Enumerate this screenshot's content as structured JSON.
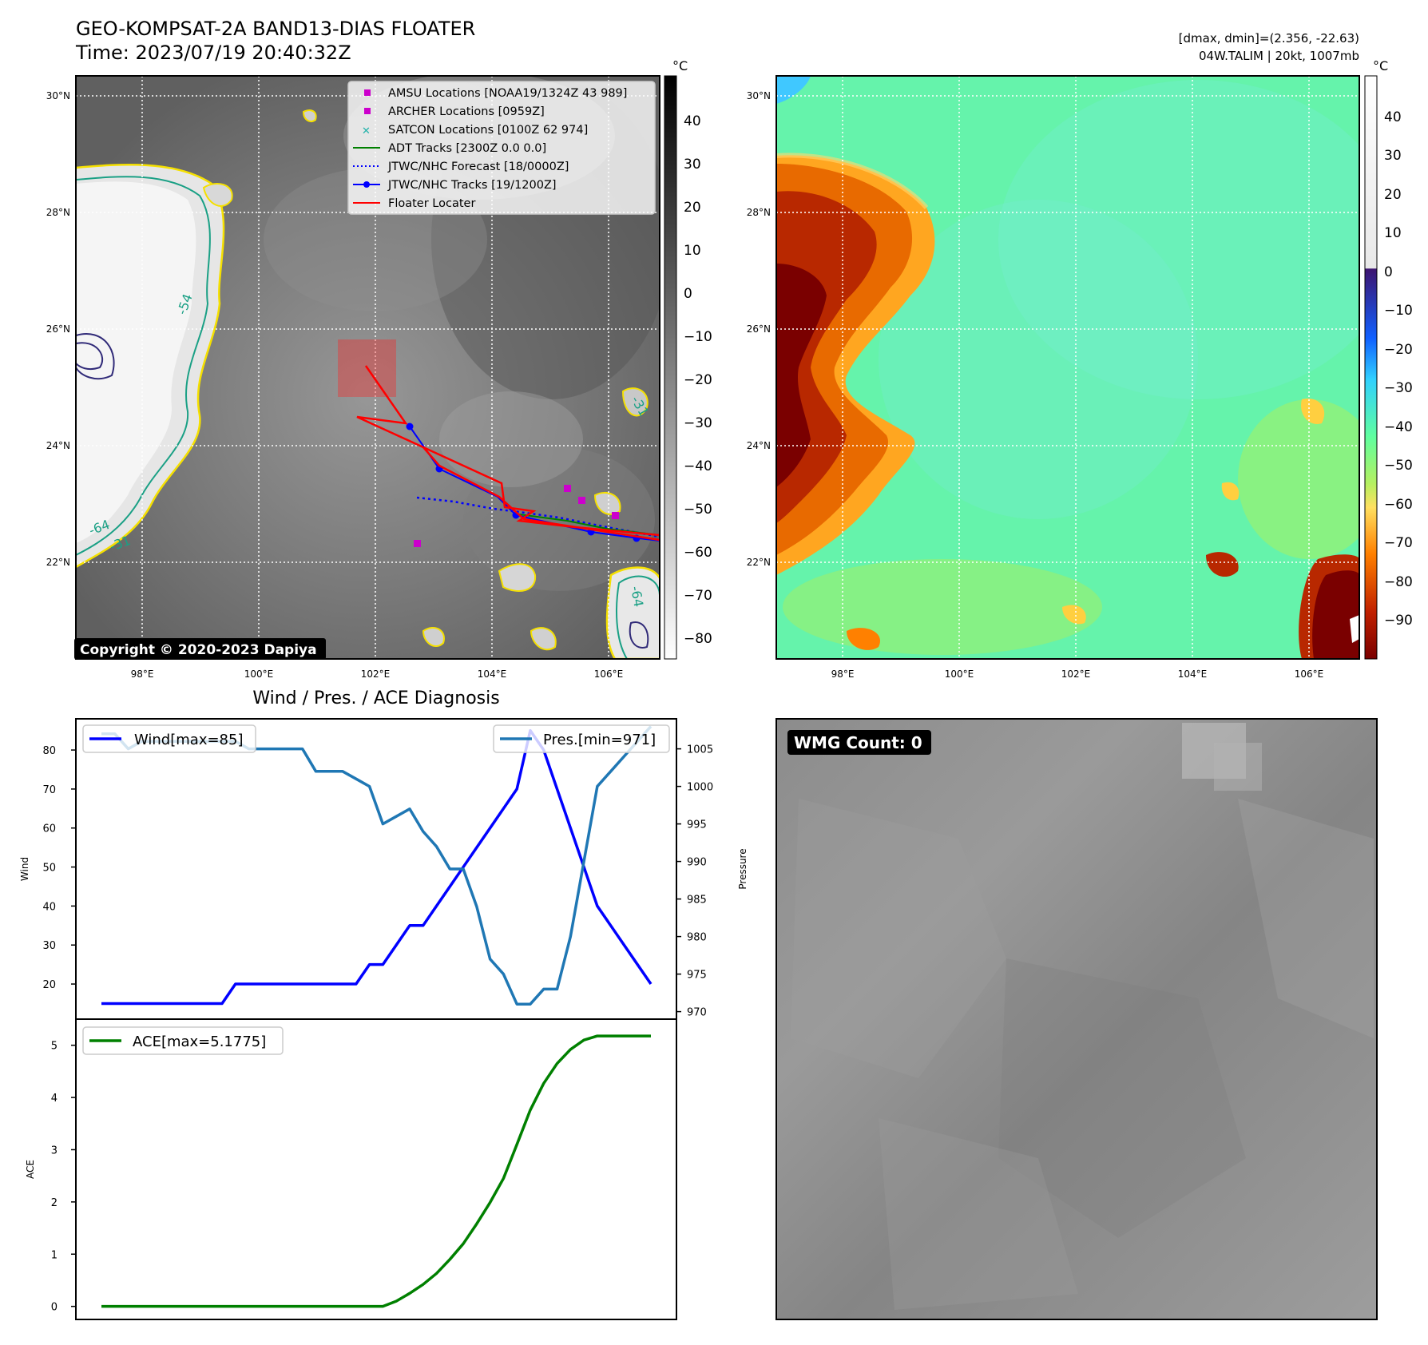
{
  "header": {
    "title_line1": "GEO-KOMPSAT-2A BAND13-DIAS FLOATER",
    "title_line2": "Time: 2023/07/19 20:40:32Z",
    "right_line1": "[dmax, dmin]=(2.356, -22.63)",
    "right_line2": "04W.TALIM | 20kt, 1007mb"
  },
  "map": {
    "lat_labels": [
      "30°N",
      "28°N",
      "26°N",
      "24°N",
      "22°N"
    ],
    "lon_labels": [
      "98°E",
      "100°E",
      "102°E",
      "104°E",
      "106°E"
    ],
    "copyright": "Copyright © 2020-2023 Dapiya",
    "contour_labels": [
      "-64",
      "-31",
      "-31",
      "-64",
      "-31",
      "-64",
      "-54",
      "-64"
    ]
  },
  "ir_colorbar": {
    "unit": "°C",
    "ticks": [
      "40",
      "30",
      "20",
      "10",
      "0",
      "−10",
      "−20",
      "−30",
      "−40",
      "−50",
      "−60",
      "−70",
      "−80"
    ]
  },
  "color_colorbar": {
    "unit": "°C",
    "ticks": [
      "40",
      "30",
      "20",
      "10",
      "0",
      "−10",
      "−20",
      "−30",
      "−40",
      "−50",
      "−60",
      "−70",
      "−80",
      "−90"
    ]
  },
  "legend": {
    "items": [
      {
        "label": "AMSU Locations [NOAA19/1324Z 43 989]",
        "color": "#cc00cc",
        "marker": "square"
      },
      {
        "label": "ARCHER Locations [0959Z]",
        "color": "#cc00cc",
        "marker": "square"
      },
      {
        "label": "SATCON Locations [0100Z 62 974]",
        "color": "#20b2aa",
        "marker": "x"
      },
      {
        "label": "ADT Tracks [2300Z 0.0 0.0]",
        "color": "#008000",
        "marker": "line"
      },
      {
        "label": "JTWC/NHC Forecast [18/0000Z]",
        "color": "#0000ff",
        "marker": "dotted"
      },
      {
        "label": "JTWC/NHC Tracks [19/1200Z]",
        "color": "#0000ff",
        "marker": "dotline"
      },
      {
        "label": "Floater Locater",
        "color": "#ff0000",
        "marker": "line"
      }
    ]
  },
  "wmg": {
    "label": "WMG Count: 0"
  },
  "chart_data": [
    {
      "type": "line",
      "title": "Wind / Pres. / ACE Diagnosis",
      "ylabel": "Wind",
      "y2label": "Pressure",
      "ylim": [
        11,
        88
      ],
      "y2lim": [
        969,
        1009
      ],
      "yticks": [
        20,
        30,
        40,
        50,
        60,
        70,
        80
      ],
      "y2ticks": [
        970,
        975,
        980,
        985,
        990,
        995,
        1000,
        1005
      ],
      "legend_left": "Wind[max=85]",
      "legend_right": "Pres.[min=971]",
      "series": [
        {
          "name": "Wind[max=85]",
          "color": "#0000ff",
          "values": [
            15,
            15,
            15,
            15,
            15,
            15,
            15,
            15,
            15,
            15,
            20,
            20,
            20,
            20,
            20,
            20,
            20,
            20,
            20,
            20,
            25,
            25,
            30,
            35,
            35,
            40,
            45,
            50,
            55,
            60,
            65,
            70,
            85,
            80,
            70,
            60,
            50,
            40,
            35,
            30,
            25,
            20
          ]
        },
        {
          "name": "Pres.[min=971]",
          "color": "#1f77b4",
          "values": [
            1007,
            1007,
            1005,
            1006,
            1006,
            1006,
            1006,
            1006,
            1006,
            1006,
            1006,
            1005,
            1005,
            1005,
            1005,
            1005,
            1002,
            1002,
            1002,
            1001,
            1000,
            995,
            996,
            997,
            994,
            992,
            989,
            989,
            984,
            977,
            975,
            971,
            971,
            973,
            973,
            980,
            990,
            1000,
            1002,
            1004,
            1006,
            1008
          ]
        }
      ]
    },
    {
      "type": "line",
      "ylabel": "ACE",
      "ylim": [
        -0.25,
        5.5
      ],
      "yticks": [
        0,
        1,
        2,
        3,
        4,
        5
      ],
      "legend": "ACE[max=5.1775]",
      "series": [
        {
          "name": "ACE[max=5.1775]",
          "color": "#008000",
          "values": [
            0,
            0,
            0,
            0,
            0,
            0,
            0,
            0,
            0,
            0,
            0,
            0,
            0,
            0,
            0,
            0,
            0,
            0,
            0,
            0,
            0,
            0,
            0.1,
            0.25,
            0.42,
            0.63,
            0.9,
            1.2,
            1.58,
            1.99,
            2.45,
            3.1,
            3.76,
            4.27,
            4.65,
            4.92,
            5.1,
            5.1775,
            5.1775,
            5.1775,
            5.1775,
            5.1775
          ]
        }
      ]
    }
  ]
}
